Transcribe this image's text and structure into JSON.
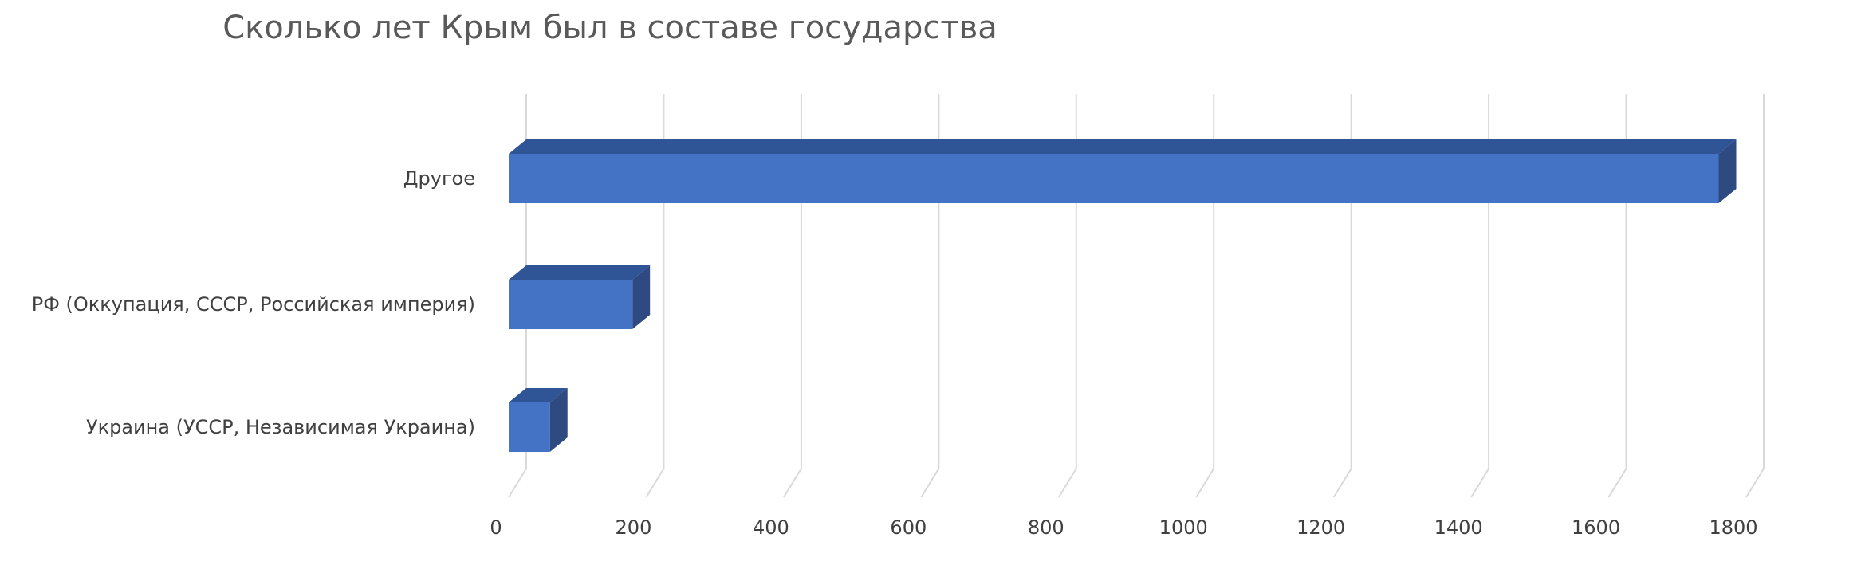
{
  "chart_data": {
    "type": "bar",
    "orientation": "horizontal",
    "style": "3d",
    "title": "Сколько лет Крым был в составе государства",
    "categories": [
      "Другое",
      "РФ (Оккупация, СССР, Российская империя)",
      "Украина (УССР, Независимая Украина)"
    ],
    "values": [
      1760,
      180,
      60
    ],
    "xlim": [
      0,
      1800
    ],
    "xticks": [
      0,
      200,
      400,
      600,
      800,
      1000,
      1200,
      1400,
      1600,
      1800
    ],
    "grid": true,
    "legend": "none",
    "colors": {
      "bar_front": "#4472c4",
      "bar_top": "#2f5597",
      "bar_side": "#2f4a80",
      "grid": "#d9d9d9",
      "text": "#404040"
    }
  }
}
